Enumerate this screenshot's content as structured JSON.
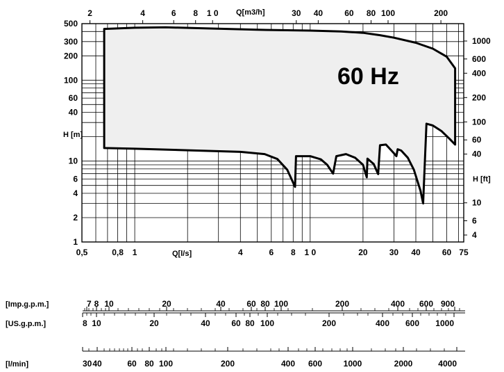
{
  "chart_data": {
    "type": "area",
    "annotation": "60 Hz",
    "scale": "log-log",
    "grid": true,
    "x_bottom": {
      "label": "Q[l/s]",
      "range": [
        0.5,
        75
      ],
      "ticks": [
        {
          "v": 0.5,
          "t": "0,5"
        },
        {
          "v": 0.8,
          "t": "0,8"
        },
        {
          "v": 1,
          "t": "1"
        },
        {
          "v": 4,
          "t": "4"
        },
        {
          "v": 6,
          "t": "6"
        },
        {
          "v": 8,
          "t": "8"
        },
        {
          "v": 10,
          "t": "1 0"
        },
        {
          "v": 20,
          "t": "20"
        },
        {
          "v": 30,
          "t": "30"
        },
        {
          "v": 40,
          "t": "40"
        },
        {
          "v": 60,
          "t": "60"
        },
        {
          "v": 75,
          "t": "75"
        }
      ]
    },
    "x_top": {
      "label": "Q[m3/h]",
      "ticks": [
        {
          "v": 2,
          "t": "2"
        },
        {
          "v": 4,
          "t": "4"
        },
        {
          "v": 6,
          "t": "6"
        },
        {
          "v": 8,
          "t": "8"
        },
        {
          "v": 10,
          "t": "1 0"
        },
        {
          "v": 30,
          "t": "30"
        },
        {
          "v": 40,
          "t": "40"
        },
        {
          "v": 60,
          "t": "60"
        },
        {
          "v": 80,
          "t": "80"
        },
        {
          "v": 100,
          "t": "100"
        },
        {
          "v": 200,
          "t": "200"
        }
      ]
    },
    "y_left": {
      "label": "H [m]",
      "range": [
        1,
        500
      ],
      "ticks": [
        {
          "v": 500,
          "t": "500"
        },
        {
          "v": 300,
          "t": "300"
        },
        {
          "v": 200,
          "t": "200"
        },
        {
          "v": 100,
          "t": "100"
        },
        {
          "v": 60,
          "t": "60"
        },
        {
          "v": 40,
          "t": "40"
        },
        {
          "v": 10,
          "t": "10"
        },
        {
          "v": 6,
          "t": "6"
        },
        {
          "v": 4,
          "t": "4"
        },
        {
          "v": 2,
          "t": "2"
        },
        {
          "v": 1,
          "t": "1"
        }
      ]
    },
    "y_right": {
      "label": "H [ft]",
      "ticks": [
        {
          "v": 1000,
          "t": "1000"
        },
        {
          "v": 600,
          "t": "600"
        },
        {
          "v": 400,
          "t": "400"
        },
        {
          "v": 200,
          "t": "200"
        },
        {
          "v": 100,
          "t": "100"
        },
        {
          "v": 60,
          "t": "60"
        },
        {
          "v": 40,
          "t": "40"
        },
        {
          "v": 10,
          "t": "10"
        },
        {
          "v": 6,
          "t": "6"
        },
        {
          "v": 4,
          "t": "4"
        }
      ]
    },
    "envelope_top": [
      [
        0.67,
        430
      ],
      [
        1.0,
        445
      ],
      [
        1.5,
        450
      ],
      [
        2.5,
        438
      ],
      [
        5,
        420
      ],
      [
        10,
        410
      ],
      [
        15,
        400
      ],
      [
        20,
        385
      ],
      [
        25,
        360
      ],
      [
        30,
        335
      ],
      [
        40,
        290
      ],
      [
        50,
        245
      ],
      [
        60,
        195
      ],
      [
        67,
        140
      ]
    ],
    "envelope_bottom": [
      [
        0.67,
        14.5
      ],
      [
        1,
        14.2
      ],
      [
        2,
        13.6
      ],
      [
        4,
        13
      ],
      [
        5.5,
        12.2
      ],
      [
        6.5,
        10.6
      ],
      [
        7.4,
        7.8
      ],
      [
        8.2,
        4.8
      ],
      [
        8.3,
        11.5
      ],
      [
        10,
        11.5
      ],
      [
        11.5,
        10.5
      ],
      [
        12.5,
        9
      ],
      [
        13.5,
        7
      ],
      [
        14.1,
        11.5
      ],
      [
        16,
        12.2
      ],
      [
        18,
        11
      ],
      [
        20,
        9
      ],
      [
        21,
        6.3
      ],
      [
        21.2,
        10.7
      ],
      [
        23,
        9.2
      ],
      [
        24.4,
        6.9
      ],
      [
        25,
        15.7
      ],
      [
        27,
        16
      ],
      [
        30,
        12.5
      ],
      [
        31,
        11.5
      ],
      [
        31.5,
        14
      ],
      [
        33,
        13.5
      ],
      [
        36,
        11
      ],
      [
        39,
        7.8
      ],
      [
        42.5,
        4.3
      ],
      [
        44,
        3
      ],
      [
        46,
        29
      ],
      [
        50,
        27.5
      ],
      [
        56,
        23.5
      ],
      [
        62,
        19
      ],
      [
        67,
        16
      ]
    ],
    "flow_scales": [
      {
        "label": "[Imp.g.p.m.]",
        "ticks": [
          "7",
          "8",
          "10",
          "20",
          "40",
          "60",
          "80",
          "100",
          "200",
          "400",
          "600",
          "900"
        ]
      },
      {
        "label": "[US.g.p.m.]",
        "ticks": [
          "8",
          "10",
          "20",
          "40",
          "60",
          "80",
          "100",
          "200",
          "400",
          "600",
          "1000"
        ]
      },
      {
        "label": "[l/min]",
        "ticks": [
          "30",
          "40",
          "60",
          "80",
          "100",
          "200",
          "400",
          "600",
          "1000",
          "2000",
          "4000"
        ]
      }
    ]
  }
}
